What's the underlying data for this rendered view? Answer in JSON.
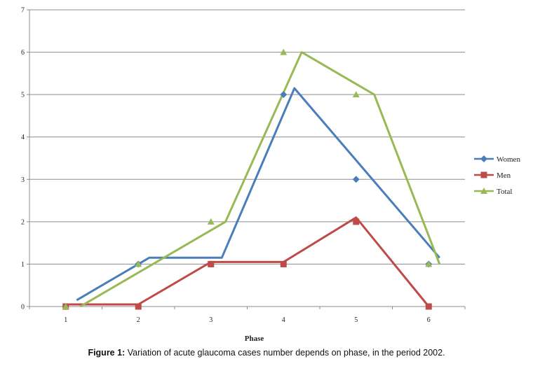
{
  "caption": {
    "prefix": "Figure 1:",
    "text": " Variation of acute glaucoma cases number depends on phase, in the period 2002."
  },
  "chart_data": {
    "type": "line",
    "xlabel": "Phase",
    "ylabel": "",
    "categories": [
      "1",
      "2",
      "3",
      "4",
      "5",
      "6"
    ],
    "ylim": [
      0,
      7
    ],
    "yticks": [
      0,
      1,
      2,
      3,
      4,
      5,
      6,
      7
    ],
    "grid": true,
    "legend_position": "right",
    "series": [
      {
        "name": "Women",
        "color": "#4a7ebb",
        "marker": "diamond",
        "points": [
          0,
          1,
          1,
          5,
          3,
          1
        ],
        "line": [
          [
            1.15,
            0.15
          ],
          [
            2.15,
            1.15
          ],
          [
            3.15,
            1.15
          ],
          [
            4.15,
            5.15
          ],
          [
            6.15,
            1.15
          ]
        ]
      },
      {
        "name": "Men",
        "color": "#be4b48",
        "marker": "square",
        "points": [
          0,
          0,
          1,
          1,
          2,
          0
        ],
        "line": [
          [
            1.0,
            0.05
          ],
          [
            2.0,
            0.05
          ],
          [
            3.0,
            1.05
          ],
          [
            4.0,
            1.05
          ],
          [
            5.0,
            2.1
          ],
          [
            6.0,
            0.0
          ]
        ]
      },
      {
        "name": "Total",
        "color": "#98b954",
        "marker": "triangle",
        "points": [
          0,
          1,
          2,
          6,
          5,
          1
        ],
        "line": [
          [
            1.2,
            0.0
          ],
          [
            3.2,
            2.0
          ],
          [
            4.25,
            6.0
          ],
          [
            5.25,
            5.0
          ],
          [
            6.15,
            1.0
          ]
        ]
      }
    ]
  }
}
